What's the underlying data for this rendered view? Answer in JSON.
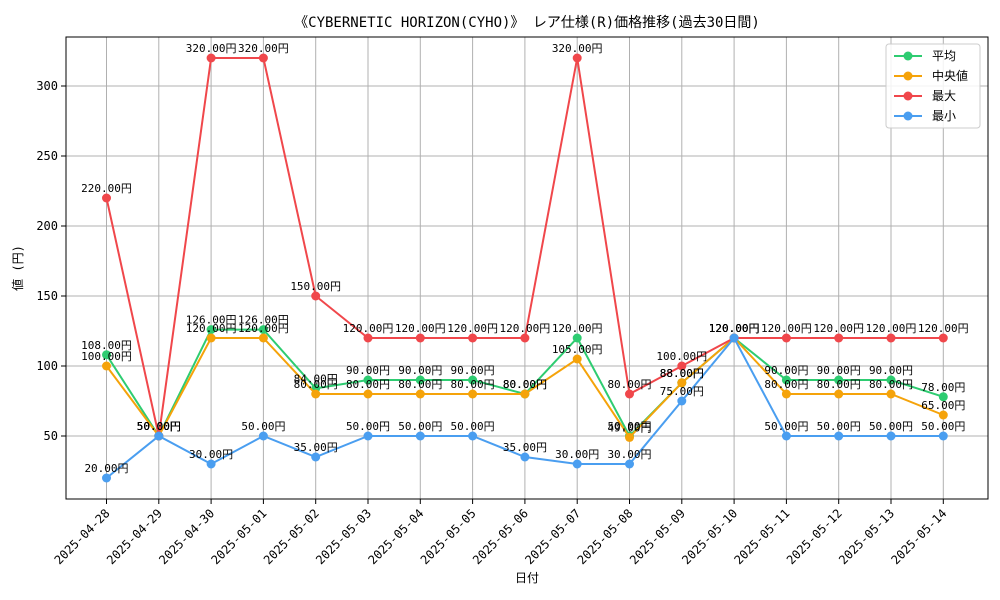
{
  "chart_data": {
    "type": "line",
    "title": "《CYBERNETIC HORIZON(CYHO)》 レア仕様(R)価格推移(過去30日間)",
    "xlabel": "日付",
    "ylabel": "値 (円)",
    "categories": [
      "2025-04-28",
      "2025-04-29",
      "2025-04-30",
      "2025-05-01",
      "2025-05-02",
      "2025-05-03",
      "2025-05-04",
      "2025-05-05",
      "2025-05-06",
      "2025-05-07",
      "2025-05-08",
      "2025-05-09",
      "2025-05-10",
      "2025-05-11",
      "2025-05-12",
      "2025-05-13",
      "2025-05-14"
    ],
    "yticks": [
      50,
      100,
      150,
      200,
      250,
      300
    ],
    "ylim": [
      5,
      335
    ],
    "grid": true,
    "legend_position": "top-right",
    "value_suffix": "円",
    "series": [
      {
        "name": "平均",
        "color": "#2ecc71",
        "values": [
          108,
          50,
          126,
          126,
          84,
          90,
          90,
          90,
          80,
          120,
          50,
          88,
          120,
          90,
          90,
          90,
          78
        ]
      },
      {
        "name": "中央値",
        "color": "#f5a30a",
        "values": [
          100,
          50,
          120,
          120,
          80,
          80,
          80,
          80,
          80,
          105,
          49,
          88,
          120,
          80,
          80,
          80,
          65
        ]
      },
      {
        "name": "最大",
        "color": "#f0474b",
        "values": [
          220,
          50,
          320,
          320,
          150,
          120,
          120,
          120,
          120,
          320,
          80,
          100,
          120,
          120,
          120,
          120,
          120
        ]
      },
      {
        "name": "最小",
        "color": "#4a9ef0",
        "values": [
          20,
          50,
          30,
          50,
          35,
          50,
          50,
          50,
          35,
          30,
          30,
          75,
          120,
          50,
          50,
          50,
          50
        ]
      }
    ]
  }
}
